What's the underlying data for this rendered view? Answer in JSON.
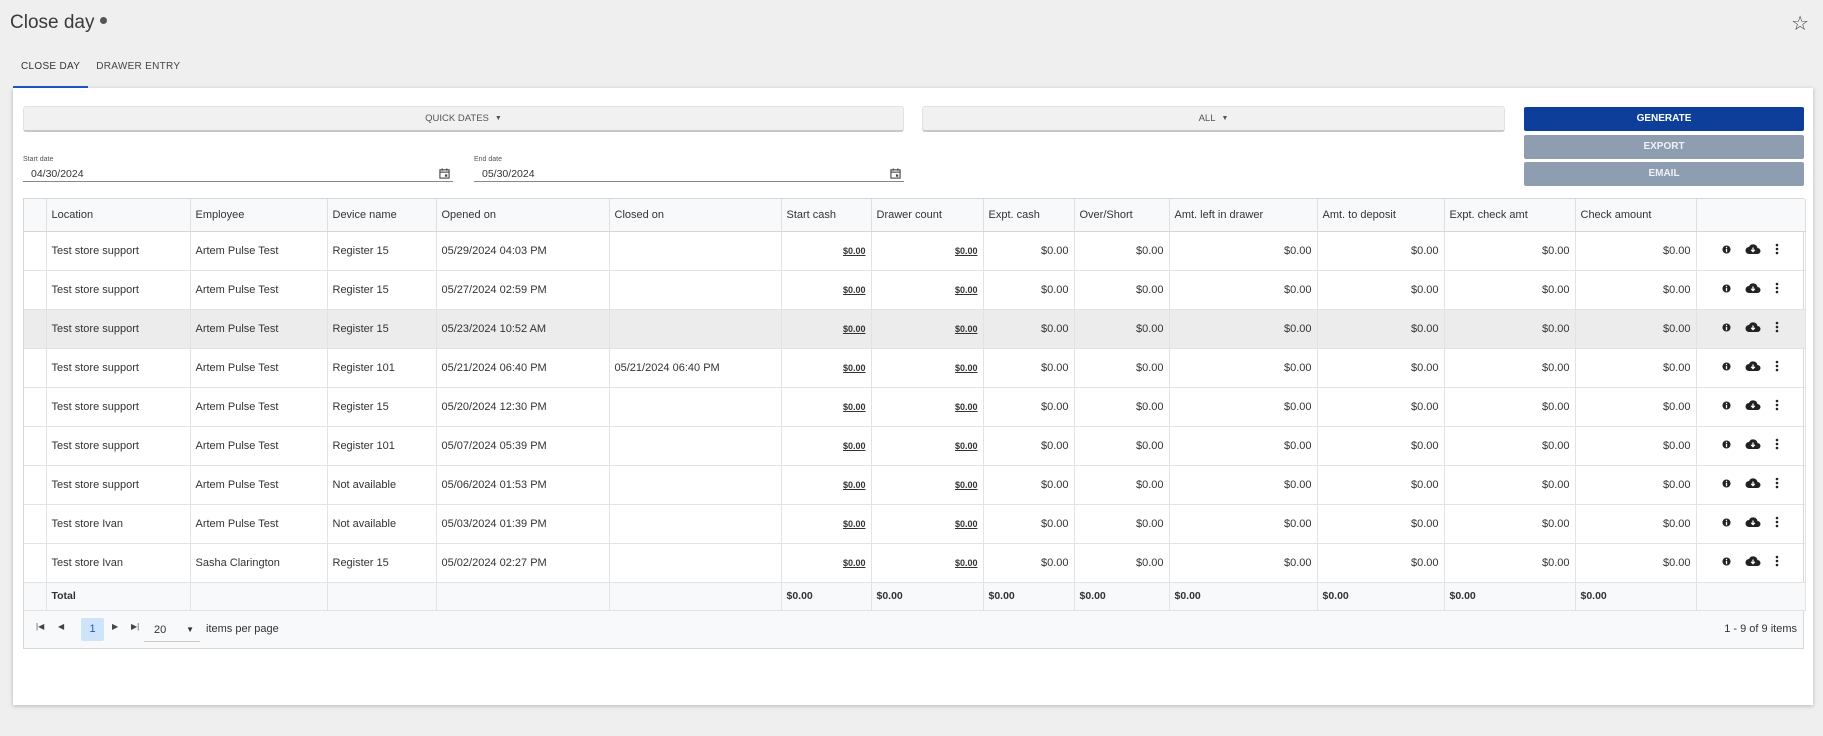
{
  "header": {
    "title": "Close day"
  },
  "tabs": [
    {
      "label": "CLOSE DAY",
      "active": true
    },
    {
      "label": "DRAWER ENTRY",
      "active": false
    }
  ],
  "filters": {
    "quick_dates_label": "QUICK DATES",
    "all_label": "ALL",
    "start_date_label": "Start date",
    "start_date_value": "04/30/2024",
    "end_date_label": "End date",
    "end_date_value": "05/30/2024"
  },
  "actions": {
    "generate": "GENERATE",
    "export": "EXPORT",
    "email": "EMAIL"
  },
  "colors": {
    "accent": "#0d3f9a",
    "disabled": "#8f9db1",
    "highlight_row": "#ececec",
    "page_selected": "#cfe3fb"
  },
  "table": {
    "columns": [
      "",
      "Location",
      "Employee",
      "Device name",
      "Opened on",
      "Closed on",
      "Start cash",
      "Drawer count",
      "Expt. cash",
      "Over/Short",
      "Amt. left in drawer",
      "Amt. to deposit",
      "Expt. check amt",
      "Check amount",
      ""
    ],
    "rows": [
      {
        "location": "Test store support",
        "employee": "Artem Pulse Test",
        "device": "Register 15",
        "opened": "05/29/2024 04:03 PM",
        "closed": "",
        "start_cash": "$0.00",
        "drawer_count": "$0.00",
        "expt_cash": "$0.00",
        "over_short": "$0.00",
        "amt_left": "$0.00",
        "amt_deposit": "$0.00",
        "expt_check": "$0.00",
        "check_amount": "$0.00"
      },
      {
        "location": "Test store support",
        "employee": "Artem Pulse Test",
        "device": "Register 15",
        "opened": "05/27/2024 02:59 PM",
        "closed": "",
        "start_cash": "$0.00",
        "drawer_count": "$0.00",
        "expt_cash": "$0.00",
        "over_short": "$0.00",
        "amt_left": "$0.00",
        "amt_deposit": "$0.00",
        "expt_check": "$0.00",
        "check_amount": "$0.00"
      },
      {
        "location": "Test store support",
        "employee": "Artem Pulse Test",
        "device": "Register 15",
        "opened": "05/23/2024 10:52 AM",
        "closed": "",
        "start_cash": "$0.00",
        "drawer_count": "$0.00",
        "expt_cash": "$0.00",
        "over_short": "$0.00",
        "amt_left": "$0.00",
        "amt_deposit": "$0.00",
        "expt_check": "$0.00",
        "check_amount": "$0.00",
        "highlight": true
      },
      {
        "location": "Test store support",
        "employee": "Artem Pulse Test",
        "device": "Register 101",
        "opened": "05/21/2024 06:40 PM",
        "closed": "05/21/2024 06:40 PM",
        "start_cash": "$0.00",
        "drawer_count": "$0.00",
        "expt_cash": "$0.00",
        "over_short": "$0.00",
        "amt_left": "$0.00",
        "amt_deposit": "$0.00",
        "expt_check": "$0.00",
        "check_amount": "$0.00"
      },
      {
        "location": "Test store support",
        "employee": "Artem Pulse Test",
        "device": "Register 15",
        "opened": "05/20/2024 12:30 PM",
        "closed": "",
        "start_cash": "$0.00",
        "drawer_count": "$0.00",
        "expt_cash": "$0.00",
        "over_short": "$0.00",
        "amt_left": "$0.00",
        "amt_deposit": "$0.00",
        "expt_check": "$0.00",
        "check_amount": "$0.00"
      },
      {
        "location": "Test store support",
        "employee": "Artem Pulse Test",
        "device": "Register 101",
        "opened": "05/07/2024 05:39 PM",
        "closed": "",
        "start_cash": "$0.00",
        "drawer_count": "$0.00",
        "expt_cash": "$0.00",
        "over_short": "$0.00",
        "amt_left": "$0.00",
        "amt_deposit": "$0.00",
        "expt_check": "$0.00",
        "check_amount": "$0.00"
      },
      {
        "location": "Test store support",
        "employee": "Artem Pulse Test",
        "device": "Not available",
        "opened": "05/06/2024 01:53 PM",
        "closed": "",
        "start_cash": "$0.00",
        "drawer_count": "$0.00",
        "expt_cash": "$0.00",
        "over_short": "$0.00",
        "amt_left": "$0.00",
        "amt_deposit": "$0.00",
        "expt_check": "$0.00",
        "check_amount": "$0.00"
      },
      {
        "location": "Test store Ivan",
        "employee": "Artem Pulse Test",
        "device": "Not available",
        "opened": "05/03/2024 01:39 PM",
        "closed": "",
        "start_cash": "$0.00",
        "drawer_count": "$0.00",
        "expt_cash": "$0.00",
        "over_short": "$0.00",
        "amt_left": "$0.00",
        "amt_deposit": "$0.00",
        "expt_check": "$0.00",
        "check_amount": "$0.00"
      },
      {
        "location": "Test store Ivan",
        "employee": "Sasha Clarington",
        "device": "Register 15",
        "opened": "05/02/2024 02:27 PM",
        "closed": "",
        "start_cash": "$0.00",
        "drawer_count": "$0.00",
        "expt_cash": "$0.00",
        "over_short": "$0.00",
        "amt_left": "$0.00",
        "amt_deposit": "$0.00",
        "expt_check": "$0.00",
        "check_amount": "$0.00"
      }
    ],
    "total": {
      "label": "Total",
      "start_cash": "$0.00",
      "drawer_count": "$0.00",
      "expt_cash": "$0.00",
      "over_short": "$0.00",
      "amt_left": "$0.00",
      "amt_deposit": "$0.00",
      "expt_check": "$0.00",
      "check_amount": "$0.00"
    },
    "row_icons": [
      "info-icon",
      "cloud-download-icon",
      "more-vertical-icon"
    ]
  },
  "pager": {
    "current_page": "1",
    "page_size": "20",
    "items_per_page_label": "items per page",
    "info": "1 - 9 of 9 items"
  }
}
